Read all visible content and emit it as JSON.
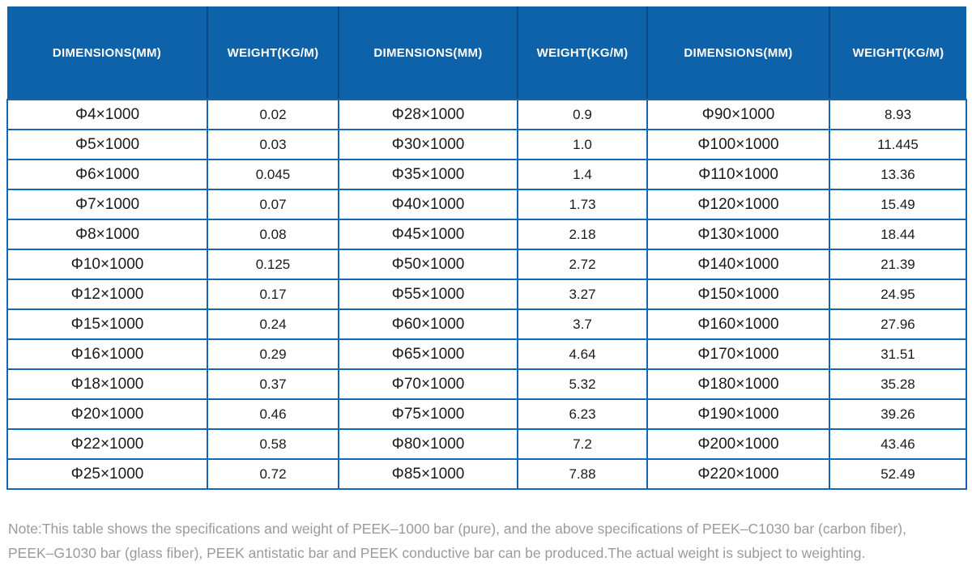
{
  "table": {
    "columns": [
      "DIMENSIONS(MM)",
      "WEIGHT(KG/M)",
      "DIMENSIONS(MM)",
      "WEIGHT(KG/M)",
      "DIMENSIONS(MM)",
      "WEIGHT(KG/M)"
    ],
    "rows": [
      [
        "Φ4×1000",
        "0.02",
        "Φ28×1000",
        "0.9",
        "Φ90×1000",
        "8.93"
      ],
      [
        "Φ5×1000",
        "0.03",
        "Φ30×1000",
        "1.0",
        "Φ100×1000",
        "11.445"
      ],
      [
        "Φ6×1000",
        "0.045",
        "Φ35×1000",
        "1.4",
        "Φ110×1000",
        "13.36"
      ],
      [
        "Φ7×1000",
        "0.07",
        "Φ40×1000",
        "1.73",
        "Φ120×1000",
        "15.49"
      ],
      [
        "Φ8×1000",
        "0.08",
        "Φ45×1000",
        "2.18",
        "Φ130×1000",
        "18.44"
      ],
      [
        "Φ10×1000",
        "0.125",
        "Φ50×1000",
        "2.72",
        "Φ140×1000",
        "21.39"
      ],
      [
        "Φ12×1000",
        "0.17",
        "Φ55×1000",
        "3.27",
        "Φ150×1000",
        "24.95"
      ],
      [
        "Φ15×1000",
        "0.24",
        "Φ60×1000",
        "3.7",
        "Φ160×1000",
        "27.96"
      ],
      [
        "Φ16×1000",
        "0.29",
        "Φ65×1000",
        "4.64",
        "Φ170×1000",
        "31.51"
      ],
      [
        "Φ18×1000",
        "0.37",
        "Φ70×1000",
        "5.32",
        "Φ180×1000",
        "35.28"
      ],
      [
        "Φ20×1000",
        "0.46",
        "Φ75×1000",
        "6.23",
        "Φ190×1000",
        "39.26"
      ],
      [
        "Φ22×1000",
        "0.58",
        "Φ80×1000",
        "7.2",
        "Φ200×1000",
        "43.46"
      ],
      [
        "Φ25×1000",
        "0.72",
        "Φ85×1000",
        "7.88",
        "Φ220×1000",
        "52.49"
      ]
    ]
  },
  "note": {
    "line1": "Note:This table shows the specifications and weight of PEEK–1000 bar (pure), and the above specifications of PEEK–C1030 bar (carbon fiber),",
    "line2": "PEEK–G1030 bar (glass fiber), PEEK antistatic bar and PEEK conductive bar can be produced.The actual weight is subject to weighting."
  },
  "colors": {
    "header_bg": "#0d62a9",
    "header_divider": "#0a4a85",
    "grid_border": "#1567b5",
    "cell_text": "#1a1a1a",
    "note_text": "#9b9b9b"
  }
}
